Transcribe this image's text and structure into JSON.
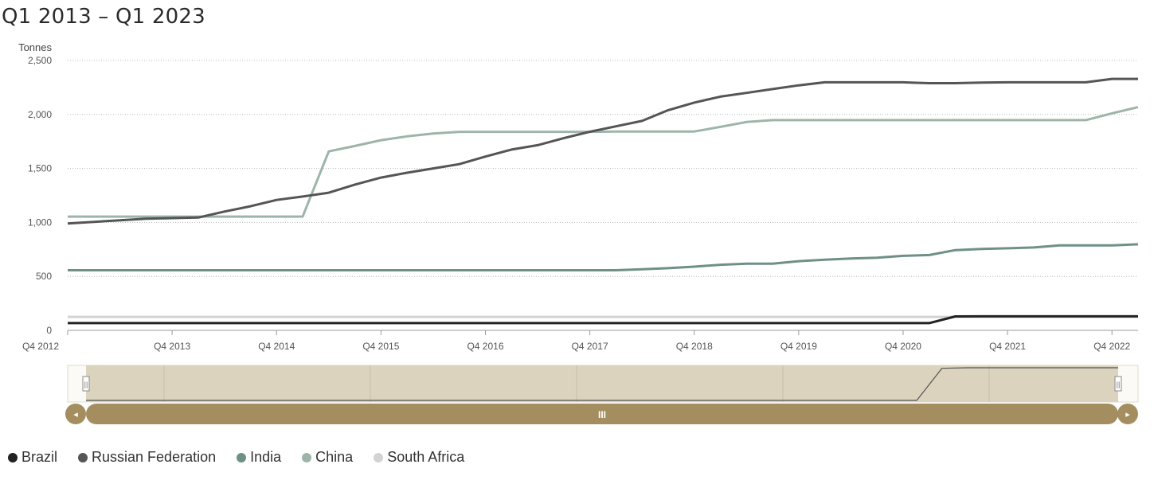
{
  "title": "Q1 2013 – Q1 2023",
  "chart_data": {
    "type": "line",
    "yunit": "Tonnes",
    "ylim": [
      0,
      2500
    ],
    "yticks": [
      0,
      500,
      1000,
      1500,
      2000,
      2500
    ],
    "ytick_labels": [
      "0",
      "500",
      "1,000",
      "1,500",
      "2,000",
      "2,500"
    ],
    "xlim": [
      "Q4 2012",
      "Q1 2023"
    ],
    "xtick_labels": [
      "Q4 2012",
      "Q4 2013",
      "Q4 2014",
      "Q4 2015",
      "Q4 2016",
      "Q4 2017",
      "Q4 2018",
      "Q4 2019",
      "Q4 2020",
      "Q4 2021",
      "Q4 2022"
    ],
    "grid": true,
    "legend_position": "bottom-left",
    "x": [
      "Q4 2012",
      "Q1 2013",
      "Q2 2013",
      "Q3 2013",
      "Q4 2013",
      "Q1 2014",
      "Q2 2014",
      "Q3 2014",
      "Q4 2014",
      "Q1 2015",
      "Q2 2015",
      "Q3 2015",
      "Q4 2015",
      "Q1 2016",
      "Q2 2016",
      "Q3 2016",
      "Q4 2016",
      "Q1 2017",
      "Q2 2017",
      "Q3 2017",
      "Q4 2017",
      "Q1 2018",
      "Q2 2018",
      "Q3 2018",
      "Q4 2018",
      "Q1 2019",
      "Q2 2019",
      "Q3 2019",
      "Q4 2019",
      "Q1 2020",
      "Q2 2020",
      "Q3 2020",
      "Q4 2020",
      "Q1 2021",
      "Q2 2021",
      "Q3 2021",
      "Q4 2021",
      "Q1 2022",
      "Q2 2022",
      "Q3 2022",
      "Q4 2022",
      "Q1 2023"
    ],
    "series": [
      {
        "name": "Brazil",
        "color": "#222222",
        "values": [
          67,
          67,
          67,
          67,
          67,
          67,
          67,
          67,
          67,
          67,
          67,
          67,
          67,
          67,
          67,
          67,
          67,
          67,
          67,
          67,
          67,
          67,
          67,
          67,
          67,
          67,
          67,
          67,
          67,
          67,
          67,
          67,
          67,
          67,
          129,
          130,
          130,
          130,
          130,
          130,
          130,
          130
        ]
      },
      {
        "name": "Russian Federation",
        "color": "#555555",
        "values": [
          990,
          1005,
          1020,
          1035,
          1040,
          1045,
          1100,
          1150,
          1208,
          1240,
          1275,
          1350,
          1415,
          1460,
          1500,
          1540,
          1610,
          1675,
          1715,
          1780,
          1840,
          1890,
          1940,
          2040,
          2110,
          2165,
          2200,
          2235,
          2270,
          2298,
          2298,
          2298,
          2298,
          2290,
          2290,
          2295,
          2298,
          2298,
          2298,
          2298,
          2330,
          2330
        ]
      },
      {
        "name": "India",
        "color": "#6e9183",
        "values": [
          557,
          557,
          557,
          557,
          557,
          557,
          557,
          557,
          557,
          557,
          557,
          557,
          557,
          557,
          557,
          557,
          557,
          557,
          557,
          557,
          557,
          557,
          566,
          576,
          590,
          608,
          618,
          618,
          641,
          655,
          665,
          673,
          690,
          698,
          743,
          754,
          760,
          768,
          787,
          787,
          787,
          797
        ]
      },
      {
        "name": "China",
        "color": "#9db5a9",
        "values": [
          1054,
          1054,
          1054,
          1054,
          1054,
          1054,
          1054,
          1054,
          1054,
          1054,
          1658,
          1708,
          1762,
          1797,
          1823,
          1839,
          1839,
          1839,
          1839,
          1839,
          1839,
          1842,
          1842,
          1842,
          1842,
          1885,
          1930,
          1948,
          1948,
          1948,
          1948,
          1948,
          1948,
          1948,
          1948,
          1948,
          1948,
          1948,
          1948,
          1948,
          2010,
          2068
        ]
      },
      {
        "name": "South Africa",
        "color": "#d3d3d3",
        "values": [
          125,
          125,
          125,
          125,
          125,
          125,
          125,
          125,
          125,
          125,
          125,
          125,
          125,
          125,
          125,
          125,
          125,
          125,
          125,
          125,
          125,
          125,
          125,
          125,
          125,
          125,
          125,
          125,
          125,
          125,
          125,
          125,
          125,
          125,
          125,
          125,
          125,
          125,
          125,
          125,
          125,
          125
        ]
      }
    ]
  },
  "navigator": {
    "left_arrow": "◂",
    "right_arrow": "▸",
    "grip": "III",
    "handle_grip": "||"
  }
}
